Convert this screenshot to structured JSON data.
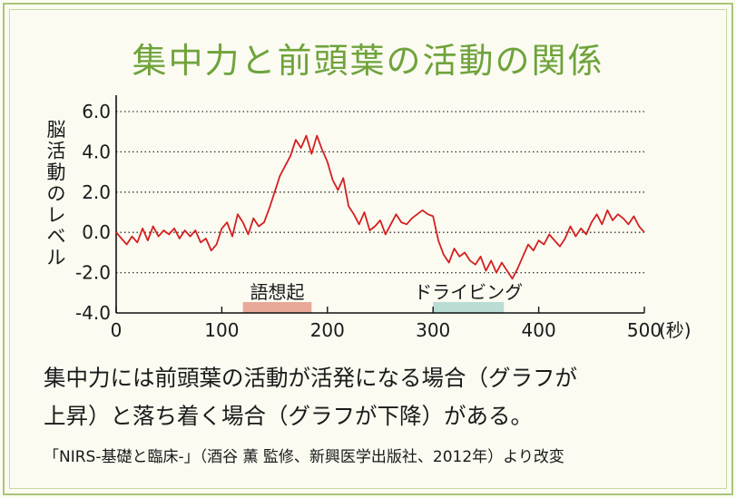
{
  "title": "集中力と前頭葉の活動の関係",
  "caption": {
    "line1": "集中力には前頭葉の活動が活発になる場合（グラフが",
    "line2": "上昇）と落ち着く場合（グラフが下降）がある。"
  },
  "source": "「NIRS-基礎と臨床-」（酒谷 薫 監修、新興医学出版社、2012年）より改変",
  "chart_data": {
    "type": "line",
    "title": "集中力と前頭葉の活動の関係",
    "xlabel": "(秒)",
    "ylabel": "脳活動のレベル",
    "xlim": [
      0,
      500
    ],
    "ylim": [
      -4.0,
      6.0
    ],
    "x_ticks": [
      0,
      100,
      200,
      300,
      400,
      500
    ],
    "x_tick_labels": [
      "0",
      "100",
      "200",
      "300",
      "400",
      "500"
    ],
    "y_ticks": [
      6.0,
      4.0,
      2.0,
      0.0,
      -2.0,
      -4.0
    ],
    "y_tick_labels": [
      "6.0",
      "4.0",
      "2.0",
      "0.0",
      "-2.0",
      "-4.0"
    ],
    "grid": "horizontal dotted",
    "line_color": "#d42020",
    "bands": [
      {
        "label": "語想起",
        "start": 120,
        "end": 185,
        "color": "#e8a898"
      },
      {
        "label": "ドライビング",
        "start": 300,
        "end": 367,
        "color": "#b9dcd5"
      }
    ],
    "series": [
      {
        "values": [
          [
            0,
            0.0
          ],
          [
            5,
            -0.3
          ],
          [
            10,
            -0.6
          ],
          [
            15,
            -0.2
          ],
          [
            20,
            -0.5
          ],
          [
            25,
            0.2
          ],
          [
            30,
            -0.4
          ],
          [
            35,
            0.3
          ],
          [
            40,
            -0.2
          ],
          [
            45,
            0.1
          ],
          [
            50,
            -0.1
          ],
          [
            55,
            0.2
          ],
          [
            60,
            -0.3
          ],
          [
            65,
            0.1
          ],
          [
            70,
            -0.2
          ],
          [
            75,
            0.1
          ],
          [
            80,
            -0.5
          ],
          [
            85,
            -0.3
          ],
          [
            90,
            -0.9
          ],
          [
            95,
            -0.6
          ],
          [
            100,
            0.2
          ],
          [
            105,
            0.5
          ],
          [
            110,
            -0.2
          ],
          [
            115,
            0.9
          ],
          [
            120,
            0.5
          ],
          [
            125,
            -0.1
          ],
          [
            130,
            0.7
          ],
          [
            135,
            0.3
          ],
          [
            140,
            0.5
          ],
          [
            145,
            1.2
          ],
          [
            150,
            2.0
          ],
          [
            155,
            2.8
          ],
          [
            160,
            3.3
          ],
          [
            165,
            3.8
          ],
          [
            170,
            4.6
          ],
          [
            175,
            4.2
          ],
          [
            180,
            4.8
          ],
          [
            185,
            3.9
          ],
          [
            190,
            4.8
          ],
          [
            195,
            4.1
          ],
          [
            200,
            3.5
          ],
          [
            205,
            2.6
          ],
          [
            210,
            2.1
          ],
          [
            215,
            2.7
          ],
          [
            220,
            1.3
          ],
          [
            225,
            0.9
          ],
          [
            230,
            0.4
          ],
          [
            235,
            1.0
          ],
          [
            240,
            0.1
          ],
          [
            245,
            0.3
          ],
          [
            250,
            0.6
          ],
          [
            255,
            -0.1
          ],
          [
            260,
            0.4
          ],
          [
            265,
            0.9
          ],
          [
            270,
            0.5
          ],
          [
            275,
            0.4
          ],
          [
            280,
            0.7
          ],
          [
            285,
            0.9
          ],
          [
            290,
            1.1
          ],
          [
            295,
            0.9
          ],
          [
            300,
            0.8
          ],
          [
            305,
            -0.4
          ],
          [
            310,
            -1.1
          ],
          [
            315,
            -1.5
          ],
          [
            320,
            -0.8
          ],
          [
            325,
            -1.2
          ],
          [
            330,
            -1.0
          ],
          [
            335,
            -1.4
          ],
          [
            340,
            -1.6
          ],
          [
            345,
            -1.2
          ],
          [
            350,
            -1.9
          ],
          [
            355,
            -1.4
          ],
          [
            360,
            -2.0
          ],
          [
            365,
            -1.5
          ],
          [
            370,
            -1.9
          ],
          [
            375,
            -2.3
          ],
          [
            380,
            -1.8
          ],
          [
            385,
            -1.2
          ],
          [
            390,
            -0.6
          ],
          [
            395,
            -0.9
          ],
          [
            400,
            -0.4
          ],
          [
            405,
            -0.6
          ],
          [
            410,
            -0.1
          ],
          [
            415,
            -0.4
          ],
          [
            420,
            -0.7
          ],
          [
            425,
            -0.3
          ],
          [
            430,
            0.3
          ],
          [
            435,
            -0.2
          ],
          [
            440,
            0.2
          ],
          [
            445,
            -0.1
          ],
          [
            450,
            0.5
          ],
          [
            455,
            0.9
          ],
          [
            460,
            0.4
          ],
          [
            465,
            1.1
          ],
          [
            470,
            0.6
          ],
          [
            475,
            0.9
          ],
          [
            480,
            0.7
          ],
          [
            485,
            0.4
          ],
          [
            490,
            0.8
          ],
          [
            495,
            0.3
          ],
          [
            500,
            0.0
          ]
        ]
      }
    ]
  }
}
